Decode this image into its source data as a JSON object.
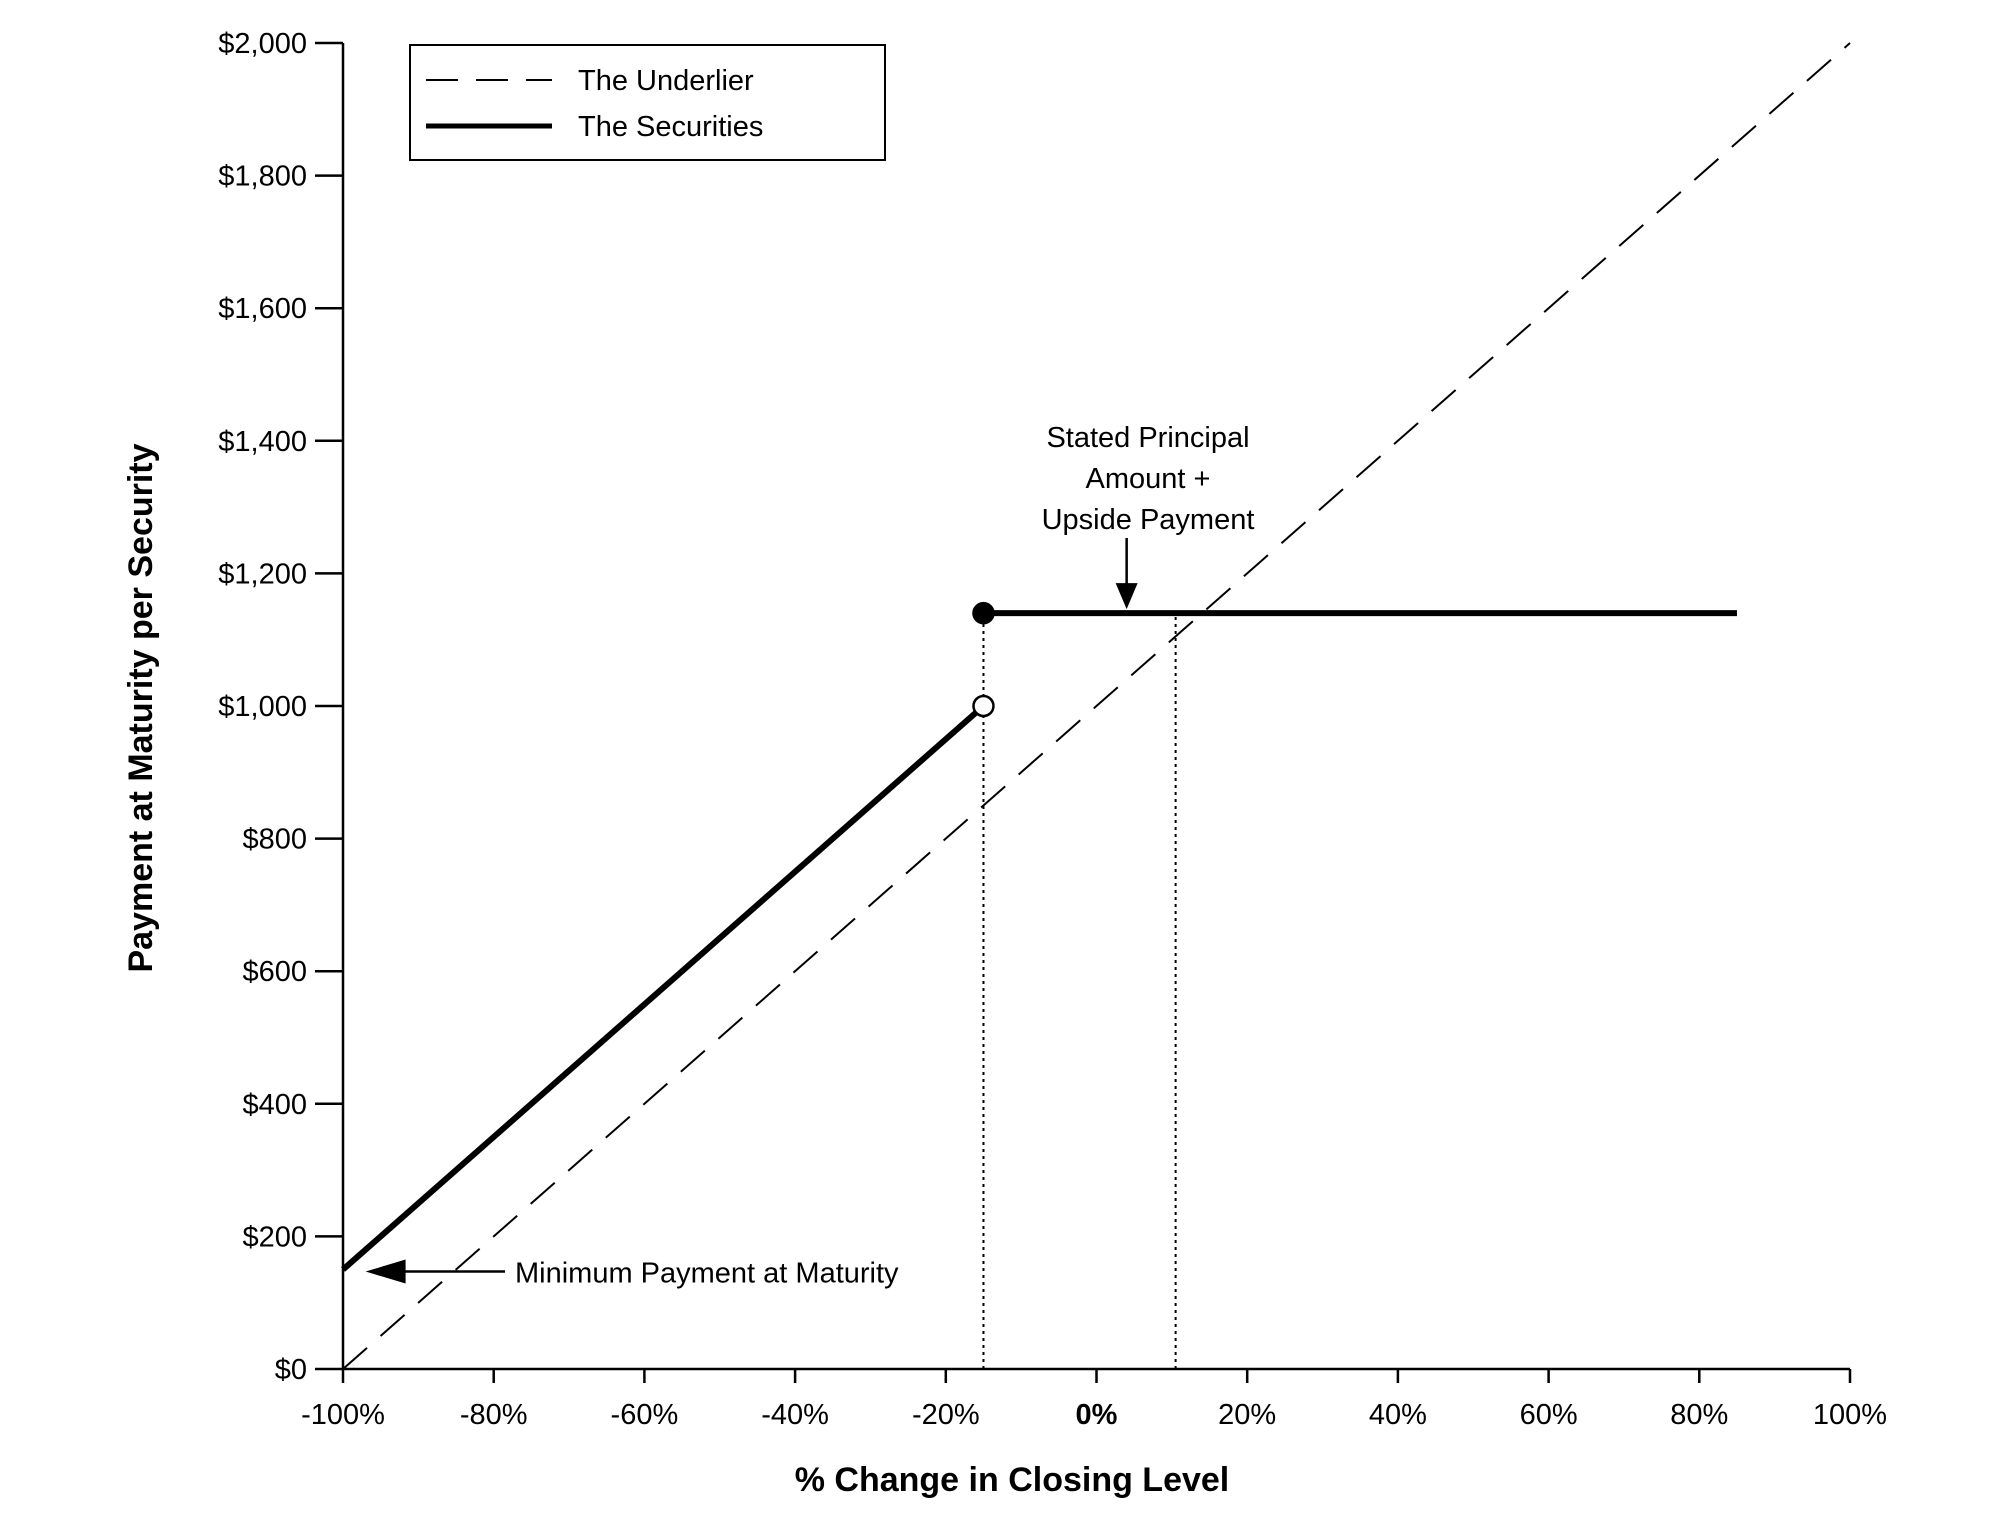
{
  "chart_data": {
    "type": "line",
    "title": "",
    "xlabel": "% Change in Closing Level",
    "ylabel": "Payment at Maturity per Security",
    "xlim": [
      -100,
      100
    ],
    "ylim": [
      0,
      2000
    ],
    "x_ticks": [
      -100,
      -80,
      -60,
      -40,
      -20,
      0,
      20,
      40,
      60,
      80,
      100
    ],
    "x_tick_labels": [
      "-100%",
      "-80%",
      "-60%",
      "-40%",
      "-20%",
      "0%",
      "20%",
      "40%",
      "60%",
      "80%",
      "100%"
    ],
    "y_ticks": [
      0,
      200,
      400,
      600,
      800,
      1000,
      1200,
      1400,
      1600,
      1800,
      2000
    ],
    "y_tick_labels": [
      "$0",
      "$200",
      "$400",
      "$600",
      "$800",
      "$1,000",
      "$1,200",
      "$1,400",
      "$1,600",
      "$1,800",
      "$2,000"
    ],
    "grid": false,
    "legend": {
      "placement": "top-left",
      "entries": [
        {
          "label": "The Underlier",
          "style": "dashed"
        },
        {
          "label": "The Securities",
          "style": "solid-thick"
        }
      ]
    },
    "series": [
      {
        "name": "The Underlier",
        "style": "dashed",
        "x": [
          -100,
          100
        ],
        "y": [
          0,
          2000
        ]
      },
      {
        "name": "The Securities",
        "style": "solid-thick",
        "segments": [
          {
            "x": [
              -100,
              -15
            ],
            "y": [
              150,
              1000
            ]
          },
          {
            "x": [
              -15,
              85
            ],
            "y": [
              1140,
              1140
            ]
          }
        ]
      }
    ],
    "markers": [
      {
        "x": -15,
        "y": 1140,
        "fill": "filled"
      },
      {
        "x": -15,
        "y": 1000,
        "fill": "open"
      }
    ],
    "reference_lines": [
      {
        "x": -15,
        "y_from": 0,
        "y_to": 1140,
        "style": "dotted"
      },
      {
        "x": 10.5,
        "y_from": 0,
        "y_to": 1140,
        "style": "dotted"
      }
    ],
    "annotations": [
      {
        "lines": [
          "Stated Principal",
          "Amount +",
          "Upside Payment"
        ],
        "arrow_to": {
          "x": 4,
          "y": 1140
        }
      },
      {
        "lines": [
          "Minimum Payment at Maturity"
        ],
        "arrow_to": {
          "x": -97,
          "y": 150
        }
      }
    ],
    "colors": {
      "ink": "#000000",
      "background": "#ffffff",
      "open_marker_fill": "#ffffff"
    }
  }
}
